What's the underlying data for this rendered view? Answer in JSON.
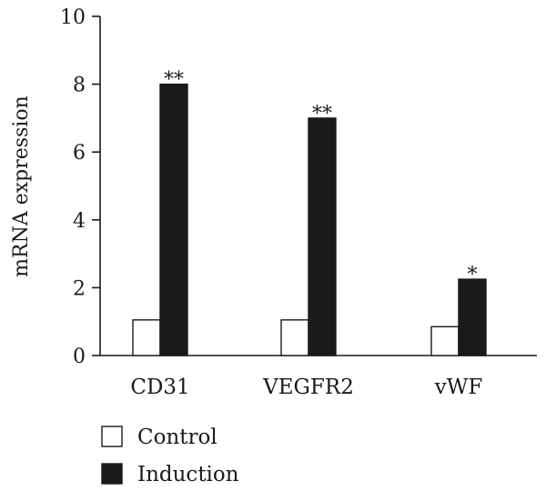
{
  "chart_data": {
    "type": "bar",
    "title": "",
    "xlabel": "",
    "ylabel": "mRNA expression",
    "ylim": [
      0,
      10
    ],
    "yticks": [
      0,
      2,
      4,
      6,
      8,
      10
    ],
    "categories": [
      "CD31",
      "VEGFR2",
      "vWF"
    ],
    "series": [
      {
        "name": "Control",
        "values": [
          1.05,
          1.05,
          0.85
        ],
        "fill": "#ffffff",
        "stroke": "#1a1a1a"
      },
      {
        "name": "Induction",
        "values": [
          8.0,
          7.0,
          2.25
        ],
        "fill": "#1a1a1a",
        "stroke": "#1a1a1a"
      }
    ],
    "annotations": [
      "**",
      "**",
      "*"
    ],
    "grid": false,
    "legend_position": "bottom-left"
  }
}
